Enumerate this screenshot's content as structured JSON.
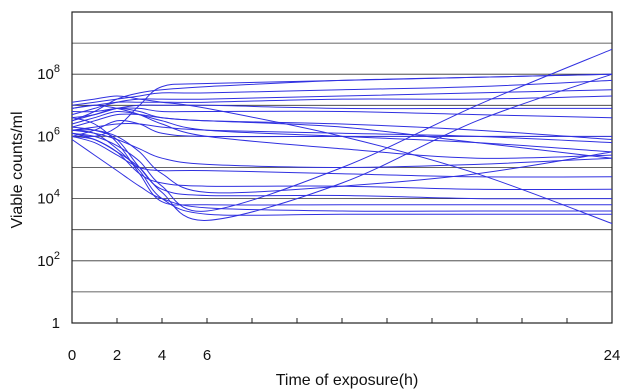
{
  "chart_data": {
    "type": "line",
    "title": "",
    "xlabel": "Time of exposure(h)",
    "ylabel": "Viable counts/ml",
    "xlim": [
      0,
      24
    ],
    "ylim": [
      0,
      10
    ],
    "y_scale": "log10",
    "grid": "horizontal",
    "legend": "none",
    "x_tick_values": [
      0,
      2,
      4,
      6,
      24
    ],
    "x_tick_labels": [
      "0",
      "2",
      "4",
      "6",
      "24"
    ],
    "x_minor_ticks": [
      0,
      2,
      4,
      6,
      8,
      10,
      12,
      14,
      16,
      18,
      20,
      22,
      24
    ],
    "y_grid_values": [
      0,
      1,
      2,
      3,
      4,
      5,
      6,
      7,
      8,
      9,
      10
    ],
    "y_tick_labels": [
      {
        "value": 0,
        "base": "1",
        "exp": ""
      },
      {
        "value": 2,
        "base": "10",
        "exp": "2"
      },
      {
        "value": 4,
        "base": "10",
        "exp": "4"
      },
      {
        "value": 6,
        "base": "10",
        "exp": "6"
      },
      {
        "value": 8,
        "base": "10",
        "exp": "8"
      }
    ],
    "series": [
      {
        "x": [
          0,
          1,
          2,
          3,
          4,
          6,
          12,
          18,
          24
        ],
        "y": [
          6.1,
          6.0,
          6.3,
          7.0,
          7.6,
          7.7,
          7.8,
          7.9,
          8.0
        ]
      },
      {
        "x": [
          0,
          1,
          2,
          3,
          4,
          6,
          12,
          18,
          24
        ],
        "y": [
          6.5,
          6.8,
          7.2,
          7.4,
          7.5,
          7.6,
          7.8,
          7.9,
          8.0
        ]
      },
      {
        "x": [
          0,
          1,
          2,
          3,
          4,
          6,
          12,
          18,
          24
        ],
        "y": [
          7.0,
          7.1,
          7.2,
          7.3,
          7.4,
          7.4,
          7.5,
          7.6,
          7.8
        ]
      },
      {
        "x": [
          0,
          1,
          2,
          3,
          4,
          6,
          12,
          18,
          24
        ],
        "y": [
          6.7,
          6.9,
          7.1,
          7.2,
          7.2,
          7.2,
          7.3,
          7.4,
          7.5
        ]
      },
      {
        "x": [
          0,
          1,
          2,
          3,
          4,
          6,
          12,
          18,
          24
        ],
        "y": [
          6.9,
          7.0,
          7.1,
          7.1,
          7.1,
          7.1,
          7.2,
          7.2,
          7.3
        ]
      },
      {
        "x": [
          0,
          1,
          2,
          3,
          4,
          6,
          12,
          18,
          24
        ],
        "y": [
          6.6,
          6.7,
          6.9,
          7.0,
          7.0,
          7.0,
          6.9,
          6.9,
          6.9
        ]
      },
      {
        "x": [
          0,
          1,
          2,
          3,
          4,
          6,
          12,
          18,
          24
        ],
        "y": [
          6.8,
          6.8,
          6.9,
          6.9,
          6.8,
          6.8,
          6.8,
          6.7,
          6.6
        ]
      },
      {
        "x": [
          0,
          1,
          2,
          3,
          4,
          6,
          12,
          18,
          24
        ],
        "y": [
          6.3,
          6.5,
          6.7,
          6.7,
          6.6,
          6.5,
          6.4,
          6.2,
          5.9
        ]
      },
      {
        "x": [
          0,
          1,
          2,
          3,
          4,
          6,
          12,
          18,
          24
        ],
        "y": [
          6.2,
          6.3,
          6.4,
          6.4,
          6.3,
          6.2,
          6.1,
          6.0,
          5.8
        ]
      },
      {
        "x": [
          0,
          1,
          2,
          3,
          4,
          6,
          12,
          18,
          24
        ],
        "y": [
          6.0,
          6.2,
          6.5,
          6.4,
          6.1,
          6.0,
          6.0,
          6.0,
          6.0
        ]
      },
      {
        "x": [
          0,
          1,
          2,
          3,
          4,
          6,
          12,
          18,
          24
        ],
        "y": [
          6.4,
          6.6,
          6.8,
          6.7,
          6.5,
          6.2,
          6.0,
          5.8,
          5.5
        ]
      },
      {
        "x": [
          0,
          1,
          2,
          3,
          4,
          6,
          12,
          18,
          24
        ],
        "y": [
          6.5,
          6.7,
          6.9,
          6.8,
          6.6,
          6.5,
          6.3,
          5.8,
          5.3
        ]
      },
      {
        "x": [
          0,
          1,
          2,
          3,
          4,
          6,
          12,
          18,
          24
        ],
        "y": [
          6.9,
          7.0,
          6.9,
          6.7,
          6.4,
          6.0,
          5.6,
          5.3,
          5.4
        ]
      },
      {
        "x": [
          0,
          1,
          2,
          3,
          4,
          6,
          12,
          18,
          24
        ],
        "y": [
          6.2,
          6.1,
          5.9,
          5.6,
          5.3,
          5.1,
          5.0,
          5.1,
          5.3
        ]
      },
      {
        "x": [
          0,
          1,
          2,
          3,
          4,
          6,
          12,
          18,
          24
        ],
        "y": [
          6.0,
          5.8,
          5.4,
          5.0,
          4.9,
          4.9,
          4.8,
          4.7,
          4.7
        ]
      },
      {
        "x": [
          0,
          1,
          2,
          3,
          4,
          6,
          12,
          18,
          24
        ],
        "y": [
          6.1,
          5.9,
          5.5,
          4.8,
          4.5,
          4.4,
          4.4,
          4.3,
          4.3
        ]
      },
      {
        "x": [
          0,
          1,
          2,
          3,
          4,
          6,
          12,
          18,
          24
        ],
        "y": [
          6.3,
          6.2,
          5.9,
          5.0,
          4.3,
          4.1,
          4.1,
          4.0,
          4.0
        ]
      },
      {
        "x": [
          0,
          1,
          2,
          3,
          4,
          6,
          12,
          18,
          24
        ],
        "y": [
          6.6,
          6.4,
          5.8,
          4.8,
          3.9,
          3.8,
          3.8,
          3.8,
          3.8
        ]
      },
      {
        "x": [
          0,
          1,
          2,
          3,
          4,
          6,
          12,
          18,
          24
        ],
        "y": [
          5.9,
          5.4,
          4.9,
          4.4,
          4.0,
          3.7,
          3.6,
          3.6,
          3.6
        ]
      },
      {
        "x": [
          0,
          1,
          2,
          3,
          4,
          6,
          12,
          18,
          24
        ],
        "y": [
          6.2,
          6.1,
          5.6,
          4.9,
          4.0,
          3.5,
          3.5,
          3.5,
          3.5
        ]
      },
      {
        "x": [
          0,
          1,
          2,
          3,
          4,
          6,
          12,
          18,
          24
        ],
        "y": [
          6.0,
          5.9,
          5.5,
          5.0,
          4.2,
          3.3,
          4.5,
          6.5,
          8.0
        ]
      },
      {
        "x": [
          0,
          1,
          2,
          3,
          4,
          6,
          12,
          18,
          24
        ],
        "y": [
          6.1,
          6.0,
          5.7,
          5.2,
          4.4,
          3.6,
          5.0,
          7.0,
          8.8
        ]
      },
      {
        "x": [
          0,
          1,
          2,
          3,
          4,
          6,
          12,
          18,
          24
        ],
        "y": [
          6.2,
          6.2,
          6.0,
          5.5,
          4.8,
          4.2,
          4.4,
          4.8,
          5.5
        ]
      },
      {
        "x": [
          0,
          1,
          2,
          3,
          4,
          6,
          12,
          18,
          24
        ],
        "y": [
          7.1,
          7.2,
          7.3,
          7.2,
          7.1,
          6.9,
          6.0,
          4.8,
          3.2
        ]
      }
    ]
  }
}
